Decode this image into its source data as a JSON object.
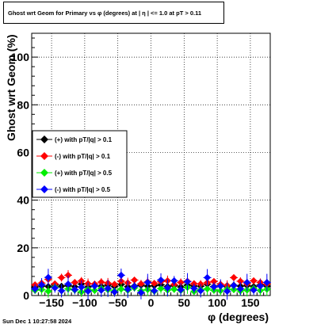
{
  "chart_data": {
    "type": "scatter",
    "title": "Ghost wrt Geom for Primary vs φ (degrees) at |  η  | <= 1.0 at pT > 0.11",
    "xlabel": "φ (degrees)",
    "ylabel": "Ghost wrt Geom (%)",
    "xlim": [
      -180,
      180
    ],
    "ylim": [
      0,
      110
    ],
    "xticks": [
      -150,
      -100,
      -50,
      0,
      50,
      100,
      150
    ],
    "xtick_labels": [
      "−150",
      "−100",
      "−50",
      "0",
      "50",
      "100",
      "150"
    ],
    "yticks": [
      0,
      20,
      40,
      60,
      80,
      100
    ],
    "grid": true,
    "legend_position": "left",
    "series": [
      {
        "name": "(+) with pT/|q| > 0.1",
        "color": "#000000",
        "x": [
          -175,
          -165,
          -155,
          -145,
          -135,
          -125,
          -115,
          -105,
          -95,
          -85,
          -75,
          -65,
          -55,
          -45,
          -35,
          -25,
          -15,
          -5,
          5,
          15,
          25,
          35,
          45,
          55,
          65,
          75,
          85,
          95,
          105,
          115,
          125,
          135,
          145,
          155,
          165,
          175
        ],
        "y": [
          3.5,
          4.0,
          3.8,
          4.5,
          3.9,
          4.2,
          3.7,
          4.8,
          3.6,
          4.1,
          3.9,
          4.4,
          3.8,
          4.6,
          3.7,
          4.0,
          4.3,
          3.9,
          4.1,
          4.5,
          3.8,
          4.2,
          3.6,
          4.4,
          4.0,
          3.9,
          4.7,
          3.8,
          4.1,
          3.7,
          4.3,
          3.9,
          4.2,
          3.8,
          4.4,
          3.9
        ]
      },
      {
        "name": "(-) with pT/|q| > 0.1",
        "color": "#ff0000",
        "x": [
          -175,
          -165,
          -155,
          -145,
          -135,
          -125,
          -115,
          -105,
          -95,
          -85,
          -75,
          -65,
          -55,
          -45,
          -35,
          -25,
          -15,
          -5,
          5,
          15,
          25,
          35,
          45,
          55,
          65,
          75,
          85,
          95,
          105,
          115,
          125,
          135,
          145,
          155,
          165,
          175
        ],
        "y": [
          4.5,
          5.2,
          6.8,
          4.9,
          7.5,
          8.5,
          5.5,
          6.1,
          5.0,
          4.8,
          5.6,
          5.2,
          4.7,
          6.0,
          5.3,
          6.5,
          4.9,
          5.7,
          5.1,
          5.8,
          6.2,
          4.6,
          5.5,
          6.0,
          5.0,
          4.8,
          5.4,
          5.9,
          4.7,
          4.2,
          7.5,
          6.0,
          4.9,
          6.2,
          5.5,
          4.8
        ]
      },
      {
        "name": "(+) with pT/|q| > 0.5",
        "color": "#00ee00",
        "x": [
          -175,
          -165,
          -155,
          -145,
          -135,
          -125,
          -115,
          -105,
          -95,
          -85,
          -75,
          -65,
          -55,
          -45,
          -35,
          -25,
          -15,
          -5,
          5,
          15,
          25,
          35,
          45,
          55,
          65,
          75,
          85,
          95,
          105,
          115,
          125,
          135,
          145,
          155,
          165,
          175
        ],
        "y": [
          2.2,
          2.5,
          1.8,
          3.5,
          2.0,
          2.8,
          2.3,
          1.5,
          2.6,
          2.1,
          3.0,
          2.4,
          1.9,
          2.7,
          2.2,
          3.2,
          2.0,
          2.5,
          1.8,
          2.9,
          2.3,
          2.6,
          2.1,
          3.4,
          1.7,
          2.4,
          2.8,
          2.2,
          2.0,
          2.7,
          2.5,
          1.9,
          2.3,
          3.0,
          2.1,
          2.6
        ]
      },
      {
        "name": "(-) with pT/|q| > 0.5",
        "color": "#0000ff",
        "x": [
          -175,
          -165,
          -155,
          -145,
          -135,
          -125,
          -115,
          -105,
          -95,
          -85,
          -75,
          -65,
          -55,
          -45,
          -35,
          -25,
          -15,
          -5,
          5,
          15,
          25,
          35,
          45,
          55,
          65,
          75,
          85,
          95,
          105,
          115,
          125,
          135,
          145,
          155,
          165,
          175
        ],
        "y": [
          2.8,
          4.5,
          7.6,
          3.2,
          2.0,
          4.8,
          2.5,
          3.5,
          1.8,
          4.0,
          2.2,
          3.0,
          1.5,
          8.5,
          2.6,
          3.8,
          1.2,
          5.5,
          2.0,
          6.5,
          3.2,
          6.2,
          2.4,
          5.8,
          3.0,
          2.0,
          7.5,
          3.6,
          4.0,
          1.8,
          4.2,
          2.8,
          5.5,
          2.3,
          4.0,
          5.5
        ]
      }
    ]
  },
  "footer": {
    "timestamp": "Sun Dec  1 10:27:58 2024"
  }
}
